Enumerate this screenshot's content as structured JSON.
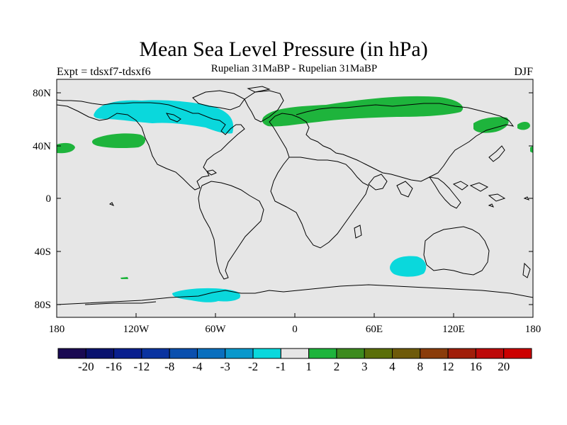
{
  "title": "Mean Sea Level Pressure (in hPa)",
  "experiment": "Expt = tdsxf7-tdsxf6",
  "subtitle": "Rupelian  31MaBP - Rupelian  31MaBP",
  "season": "DJF",
  "lat_labels": [
    "80N",
    "40N",
    "0",
    "40S",
    "80S"
  ],
  "lon_labels": [
    "180",
    "120W",
    "60W",
    "0",
    "60E",
    "120E",
    "180"
  ],
  "colorbar": {
    "colors": [
      "#1a0a52",
      "#0a126e",
      "#0a1f8e",
      "#0a33a0",
      "#0a4fae",
      "#0a6fbe",
      "#0a98cc",
      "#0ad8dc",
      "#e6e6e6",
      "#1eb43c",
      "#3c8a1e",
      "#5a6e0a",
      "#6e5a0a",
      "#8a3c0a",
      "#a01e0a",
      "#bd0a0a",
      "#cc0000"
    ],
    "labels": [
      "-20",
      "-16",
      "-12",
      "-8",
      "-4",
      "-3",
      "-2",
      "-1",
      "1",
      "2",
      "3",
      "4",
      "8",
      "12",
      "16",
      "20"
    ]
  },
  "colors": {
    "ocean": "#e6e6e6",
    "positive": "#1eb43c",
    "negative": "#0ad8dc"
  }
}
